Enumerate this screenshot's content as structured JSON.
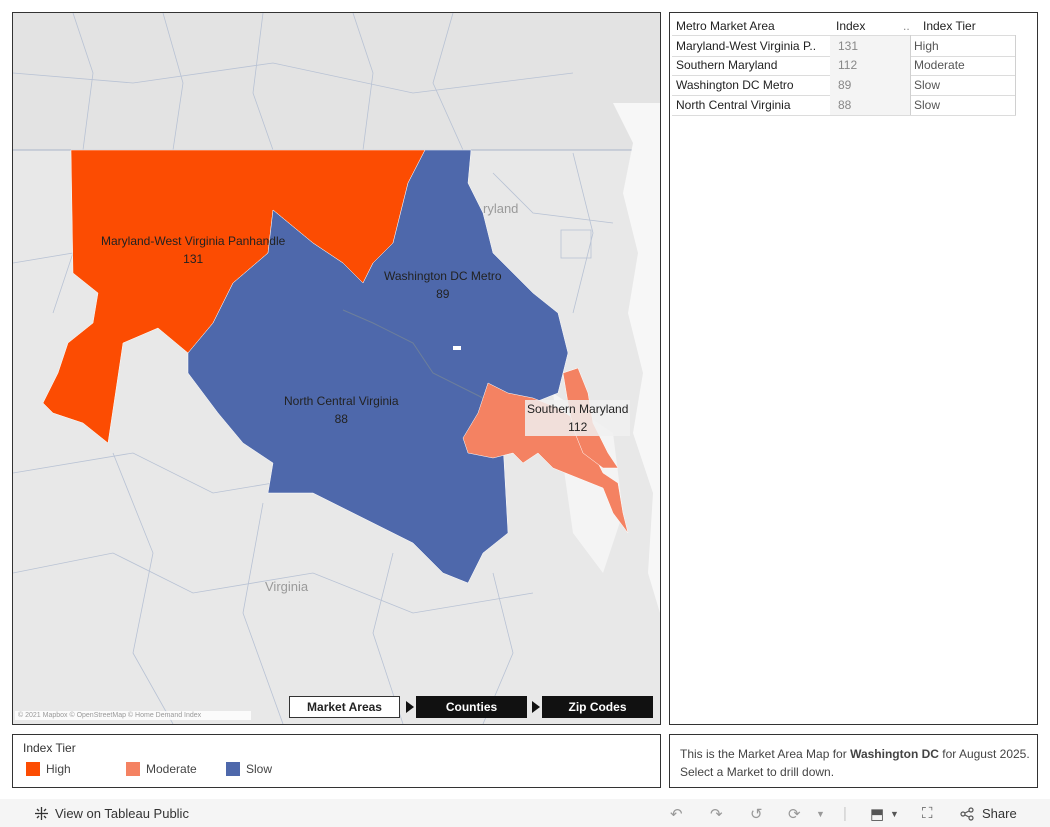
{
  "colors": {
    "high": "#fc4c02",
    "moderate": "#f48262",
    "slow": "#4e68ab"
  },
  "map": {
    "regions": [
      {
        "name": "Maryland-West Virginia Panhandle",
        "index": "131",
        "tier": "High"
      },
      {
        "name": "Washington DC Metro",
        "index": "89",
        "tier": "Slow"
      },
      {
        "name": "North Central Virginia",
        "index": "88",
        "tier": "Slow"
      },
      {
        "name": "Southern Maryland",
        "index": "112",
        "tier": "Moderate"
      }
    ],
    "geo_labels": {
      "maryland": "ryland",
      "virginia": "Virginia"
    },
    "attribution": "© 2021 Mapbox © OpenStreetMap © Home Demand Index"
  },
  "nav": {
    "market_areas": "Market Areas",
    "counties": "Counties",
    "zip_codes": "Zip Codes"
  },
  "table": {
    "headers": {
      "area": "Metro Market Area",
      "index": "Index",
      "dots": "..",
      "tier": "Index Tier"
    },
    "rows": [
      {
        "area": "Maryland-West Virginia P..",
        "index": "131",
        "tier": "High"
      },
      {
        "area": "Southern Maryland",
        "index": "112",
        "tier": "Moderate"
      },
      {
        "area": "Washington DC Metro",
        "index": "89",
        "tier": "Slow"
      },
      {
        "area": "North Central Virginia",
        "index": "88",
        "tier": "Slow"
      }
    ]
  },
  "legend": {
    "title": "Index Tier",
    "items": [
      {
        "label": "High",
        "color": "#fc4c02"
      },
      {
        "label": "Moderate",
        "color": "#f48262"
      },
      {
        "label": "Slow",
        "color": "#4e68ab"
      }
    ]
  },
  "note": {
    "prefix": "This is the Market Area Map for ",
    "place": "Washington DC",
    "suffix": " for August 2025.  Select a Market to drill down."
  },
  "footer": {
    "view_label": "View on Tableau Public",
    "share_label": "Share"
  }
}
